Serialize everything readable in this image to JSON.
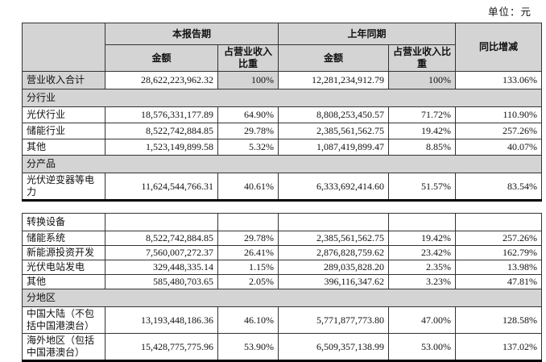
{
  "page": {
    "unit_label": "单位：元"
  },
  "table": {
    "headers": {
      "current_period": "本报告期",
      "prior_period": "上年同期",
      "yoy_change": "同比增减",
      "amount": "金额",
      "pct_of_revenue": "占营业收入比重"
    },
    "part1_rows": [
      {
        "type": "total",
        "label": "营业收入合计",
        "amount_current": "28,622,223,962.32",
        "pct_current": "100%",
        "amount_prior": "12,281,234,912.79",
        "pct_prior": "100%",
        "yoy": "133.06%"
      },
      {
        "type": "section",
        "label": "分行业"
      },
      {
        "type": "data",
        "label": "光伏行业",
        "amount_current": "18,576,331,177.89",
        "pct_current": "64.90%",
        "amount_prior": "8,808,253,450.57",
        "pct_prior": "71.72%",
        "yoy": "110.90%"
      },
      {
        "type": "data",
        "label": "储能行业",
        "amount_current": "8,522,742,884.85",
        "pct_current": "29.78%",
        "amount_prior": "2,385,561,562.75",
        "pct_prior": "19.42%",
        "yoy": "257.26%"
      },
      {
        "type": "data",
        "label": "其他",
        "amount_current": "1,523,149,899.58",
        "pct_current": "5.32%",
        "amount_prior": "1,087,419,899.47",
        "pct_prior": "8.85%",
        "yoy": "40.07%"
      },
      {
        "type": "section",
        "label": "分产品"
      },
      {
        "type": "data",
        "label": "光伏逆变器等电力",
        "amount_current": "11,624,544,766.31",
        "pct_current": "40.61%",
        "amount_prior": "6,333,692,414.60",
        "pct_prior": "51.57%",
        "yoy": "83.54%"
      }
    ],
    "part2_rows": [
      {
        "type": "data",
        "label": "转换设备",
        "amount_current": "",
        "pct_current": "",
        "amount_prior": "",
        "pct_prior": "",
        "yoy": ""
      },
      {
        "type": "data",
        "label": "储能系统",
        "amount_current": "8,522,742,884.85",
        "pct_current": "29.78%",
        "amount_prior": "2,385,561,562.75",
        "pct_prior": "19.42%",
        "yoy": "257.26%"
      },
      {
        "type": "data",
        "label": "新能源投资开发",
        "amount_current": "7,560,007,272.37",
        "pct_current": "26.41%",
        "amount_prior": "2,876,828,759.62",
        "pct_prior": "23.42%",
        "yoy": "162.79%"
      },
      {
        "type": "data",
        "label": "光伏电站发电",
        "amount_current": "329,448,335.14",
        "pct_current": "1.15%",
        "amount_prior": "289,035,828.20",
        "pct_prior": "2.35%",
        "yoy": "13.98%"
      },
      {
        "type": "data",
        "label": "其他",
        "amount_current": "585,480,703.65",
        "pct_current": "2.05%",
        "amount_prior": "396,116,347.62",
        "pct_prior": "3.23%",
        "yoy": "47.81%"
      },
      {
        "type": "section",
        "label": "分地区"
      },
      {
        "type": "data",
        "label": "中国大陆（不包括中国港澳台）",
        "amount_current": "13,193,448,186.36",
        "pct_current": "46.10%",
        "amount_prior": "5,771,877,773.80",
        "pct_prior": "47.00%",
        "yoy": "128.58%"
      },
      {
        "type": "data",
        "label": "海外地区（包括中国港澳台）",
        "amount_current": "15,428,775,775.96",
        "pct_current": "53.90%",
        "amount_prior": "6,509,357,138.99",
        "pct_prior": "53.00%",
        "yoy": "137.02%"
      }
    ]
  }
}
